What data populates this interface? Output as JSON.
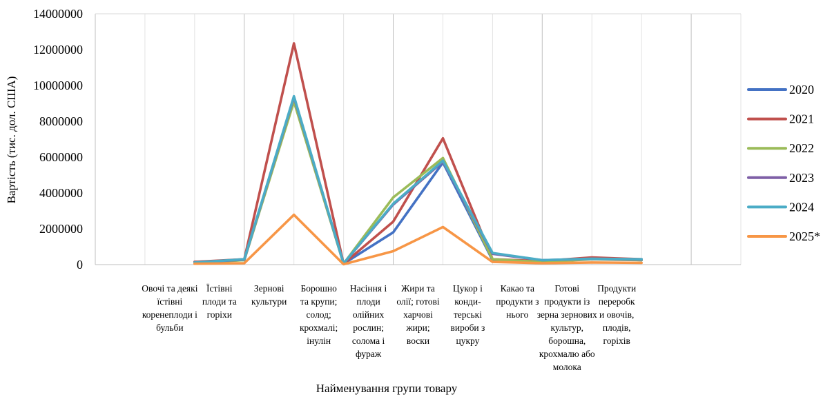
{
  "chart_data": {
    "type": "line",
    "title": "",
    "xlabel": "Найменування групи товару",
    "ylabel": "Вартість (тис. дол. США)",
    "ylim": [
      0,
      14000000
    ],
    "yticks": [
      "0",
      "2000000",
      "4000000",
      "6000000",
      "8000000",
      "10000000",
      "12000000",
      "14000000"
    ],
    "grid": "vertical",
    "legend_position": "right",
    "categories": [
      "Овочі та деякі їстівні коренеплоди і бульби",
      "Їстівні плоди та горіхи",
      "Зернові культури",
      "Борошно та крупи; солод; крохмалі; інулін",
      "Насіння і плоди олійних рослин; солома і фураж",
      "Жири та олії; готові харчові жири; воски",
      "Цукор і конди-терські вироби з цукру",
      "Какао та продукти з нього",
      "Готові продукти із зерна зернових культур, борошна, крохмалю або молока",
      "Продукти переробк и овочів, плодів, горіхів"
    ],
    "category_lines": [
      [
        "Овочі та деякі",
        "їстівні",
        "коренеплоди і",
        "бульби"
      ],
      [
        "Їстівні",
        "плоди та",
        "горіхи"
      ],
      [
        "Зернові",
        "культури"
      ],
      [
        "Борошно",
        "та крупи;",
        "солод;",
        "крохмалі;",
        "інулін"
      ],
      [
        "Насіння і",
        "плоди",
        "олійних",
        "рослин;",
        "солома і",
        "фураж"
      ],
      [
        "Жири та",
        "олії; готові",
        "харчові",
        "жири;",
        "воски"
      ],
      [
        "Цукор і",
        "конди-",
        "терські",
        "вироби з",
        "цукру"
      ],
      [
        "Какао та",
        "продукти з",
        "нього"
      ],
      [
        "Готові",
        "продукти із",
        "зерна зернових",
        "культур,",
        "борошна,",
        "крохмалю або",
        "молока"
      ],
      [
        "Продукти",
        "переробк",
        "и овочів,",
        "плодів,",
        "горіхів"
      ]
    ],
    "x": [
      1.5,
      2.5,
      3.5,
      4.5,
      5.5,
      6.5,
      7.5,
      8.5,
      9.5,
      10.5
    ],
    "series": [
      {
        "name": "2020",
        "color": "#4472c4",
        "points": [
          [
            2,
            150000
          ],
          [
            3,
            250000
          ],
          [
            4,
            9300000
          ],
          [
            5,
            50000
          ],
          [
            6,
            1800000
          ],
          [
            7,
            5700000
          ],
          [
            8,
            250000
          ],
          [
            9,
            200000
          ],
          [
            10,
            350000
          ],
          [
            11,
            250000
          ]
        ]
      },
      {
        "name": "2021",
        "color": "#c0504d",
        "points": [
          [
            2,
            150000
          ],
          [
            3,
            300000
          ],
          [
            4,
            12350000
          ],
          [
            5,
            50000
          ],
          [
            6,
            2400000
          ],
          [
            7,
            7050000
          ],
          [
            8,
            300000
          ],
          [
            9,
            200000
          ],
          [
            10,
            400000
          ],
          [
            11,
            300000
          ]
        ]
      },
      {
        "name": "2022",
        "color": "#9bbb59",
        "points": [
          [
            2,
            100000
          ],
          [
            3,
            250000
          ],
          [
            4,
            9100000
          ],
          [
            5,
            50000
          ],
          [
            6,
            3750000
          ],
          [
            7,
            5950000
          ],
          [
            8,
            300000
          ],
          [
            9,
            150000
          ],
          [
            10,
            300000
          ],
          [
            11,
            250000
          ]
        ]
      },
      {
        "name": "2023",
        "color": "#7e5fa6",
        "points": [
          [
            2,
            120000
          ],
          [
            3,
            280000
          ],
          [
            4,
            9350000
          ],
          [
            5,
            60000
          ],
          [
            6,
            3350000
          ],
          [
            7,
            5750000
          ],
          [
            8,
            600000
          ],
          [
            9,
            250000
          ],
          [
            10,
            320000
          ],
          [
            11,
            280000
          ]
        ]
      },
      {
        "name": "2024",
        "color": "#4bacc6",
        "points": [
          [
            2,
            120000
          ],
          [
            3,
            300000
          ],
          [
            4,
            9400000
          ],
          [
            5,
            60000
          ],
          [
            6,
            3400000
          ],
          [
            7,
            5800000
          ],
          [
            8,
            650000
          ],
          [
            9,
            250000
          ],
          [
            10,
            330000
          ],
          [
            11,
            300000
          ]
        ]
      },
      {
        "name": "2025*",
        "color": "#f79646",
        "points": [
          [
            2,
            50000
          ],
          [
            3,
            80000
          ],
          [
            4,
            2780000
          ],
          [
            5,
            20000
          ],
          [
            6,
            750000
          ],
          [
            7,
            2100000
          ],
          [
            8,
            150000
          ],
          [
            9,
            80000
          ],
          [
            10,
            120000
          ],
          [
            11,
            100000
          ]
        ]
      }
    ]
  }
}
